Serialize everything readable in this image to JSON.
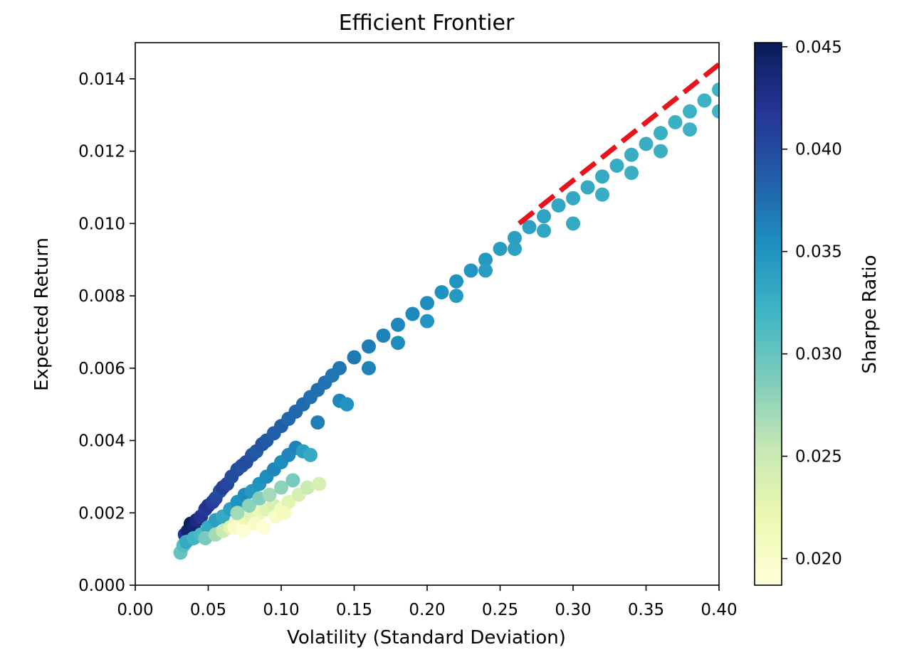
{
  "chart_data": {
    "type": "scatter",
    "title": "Efficient Frontier",
    "xlabel": "Volatility (Standard Deviation)",
    "ylabel": "Expected Return",
    "xlim": [
      0.0,
      0.4
    ],
    "ylim": [
      0.0,
      0.015
    ],
    "x_ticks": [
      "0.00",
      "0.05",
      "0.10",
      "0.15",
      "0.20",
      "0.25",
      "0.30",
      "0.35",
      "0.40"
    ],
    "y_ticks": [
      "0.000",
      "0.002",
      "0.004",
      "0.006",
      "0.008",
      "0.010",
      "0.012",
      "0.014"
    ],
    "grid": false,
    "colorbar": {
      "label": "Sharpe Ratio",
      "colormap": "YlGnBu",
      "range": [
        0.0187,
        0.0452
      ],
      "ticks": [
        "0.020",
        "0.025",
        "0.030",
        "0.035",
        "0.040",
        "0.045"
      ],
      "tick_values": [
        0.02,
        0.025,
        0.03,
        0.035,
        0.04,
        0.045
      ]
    },
    "series": [
      {
        "type": "scatter",
        "columns": [
          "volatility",
          "expected_return",
          "sharpe_ratio"
        ],
        "points": [
          [
            0.031,
            0.0009,
            0.03
          ],
          [
            0.033,
            0.0011,
            0.031
          ],
          [
            0.034,
            0.0014,
            0.042
          ],
          [
            0.036,
            0.0015,
            0.044
          ],
          [
            0.038,
            0.0017,
            0.045
          ],
          [
            0.04,
            0.0016,
            0.044
          ],
          [
            0.042,
            0.0018,
            0.043
          ],
          [
            0.045,
            0.0019,
            0.042
          ],
          [
            0.048,
            0.0021,
            0.0415
          ],
          [
            0.05,
            0.0022,
            0.042
          ],
          [
            0.053,
            0.0023,
            0.041
          ],
          [
            0.055,
            0.0024,
            0.0405
          ],
          [
            0.058,
            0.0026,
            0.04
          ],
          [
            0.06,
            0.0027,
            0.041
          ],
          [
            0.063,
            0.0028,
            0.0405
          ],
          [
            0.066,
            0.003,
            0.04
          ],
          [
            0.07,
            0.0032,
            0.04
          ],
          [
            0.073,
            0.0033,
            0.0395
          ],
          [
            0.076,
            0.0034,
            0.04
          ],
          [
            0.08,
            0.0036,
            0.0395
          ],
          [
            0.083,
            0.0037,
            0.039
          ],
          [
            0.087,
            0.0039,
            0.0395
          ],
          [
            0.09,
            0.004,
            0.039
          ],
          [
            0.095,
            0.0042,
            0.0385
          ],
          [
            0.1,
            0.0044,
            0.0385
          ],
          [
            0.105,
            0.0046,
            0.038
          ],
          [
            0.11,
            0.0048,
            0.038
          ],
          [
            0.115,
            0.005,
            0.0378
          ],
          [
            0.12,
            0.0052,
            0.0375
          ],
          [
            0.125,
            0.0054,
            0.0375
          ],
          [
            0.13,
            0.0056,
            0.0372
          ],
          [
            0.135,
            0.0058,
            0.037
          ],
          [
            0.14,
            0.006,
            0.037
          ],
          [
            0.15,
            0.0063,
            0.0368
          ],
          [
            0.16,
            0.0066,
            0.0365
          ],
          [
            0.17,
            0.0069,
            0.0362
          ],
          [
            0.18,
            0.0072,
            0.036
          ],
          [
            0.19,
            0.0075,
            0.0358
          ],
          [
            0.2,
            0.0078,
            0.0355
          ],
          [
            0.21,
            0.0081,
            0.0352
          ],
          [
            0.22,
            0.0084,
            0.035
          ],
          [
            0.23,
            0.0087,
            0.0348
          ],
          [
            0.24,
            0.009,
            0.0345
          ],
          [
            0.25,
            0.0093,
            0.0343
          ],
          [
            0.26,
            0.0096,
            0.034
          ],
          [
            0.27,
            0.0099,
            0.0338
          ],
          [
            0.28,
            0.0102,
            0.0336
          ],
          [
            0.29,
            0.0105,
            0.0334
          ],
          [
            0.3,
            0.0107,
            0.0332
          ],
          [
            0.31,
            0.011,
            0.0331
          ],
          [
            0.32,
            0.0113,
            0.033
          ],
          [
            0.33,
            0.0116,
            0.0329
          ],
          [
            0.34,
            0.0119,
            0.0328
          ],
          [
            0.35,
            0.0122,
            0.0327
          ],
          [
            0.36,
            0.0125,
            0.0326
          ],
          [
            0.37,
            0.0128,
            0.0325
          ],
          [
            0.38,
            0.0131,
            0.0324
          ],
          [
            0.39,
            0.0134,
            0.0323
          ],
          [
            0.4,
            0.0137,
            0.0322
          ],
          [
            0.035,
            0.0012,
            0.033
          ],
          [
            0.04,
            0.0013,
            0.032
          ],
          [
            0.045,
            0.0014,
            0.0315
          ],
          [
            0.05,
            0.0016,
            0.033
          ],
          [
            0.055,
            0.0018,
            0.034
          ],
          [
            0.06,
            0.0019,
            0.033
          ],
          [
            0.065,
            0.0021,
            0.034
          ],
          [
            0.07,
            0.0023,
            0.035
          ],
          [
            0.075,
            0.0025,
            0.0355
          ],
          [
            0.08,
            0.0026,
            0.0345
          ],
          [
            0.085,
            0.0028,
            0.035
          ],
          [
            0.09,
            0.003,
            0.0355
          ],
          [
            0.095,
            0.0032,
            0.036
          ],
          [
            0.1,
            0.0034,
            0.0355
          ],
          [
            0.105,
            0.0036,
            0.036
          ],
          [
            0.11,
            0.0038,
            0.0362
          ],
          [
            0.115,
            0.0037,
            0.034
          ],
          [
            0.12,
            0.0036,
            0.033
          ],
          [
            0.125,
            0.0045,
            0.0365
          ],
          [
            0.14,
            0.0051,
            0.036
          ],
          [
            0.145,
            0.005,
            0.035
          ],
          [
            0.16,
            0.006,
            0.0362
          ],
          [
            0.18,
            0.0067,
            0.0355
          ],
          [
            0.2,
            0.0073,
            0.035
          ],
          [
            0.22,
            0.008,
            0.0345
          ],
          [
            0.24,
            0.0087,
            0.0342
          ],
          [
            0.26,
            0.0093,
            0.0338
          ],
          [
            0.28,
            0.0098,
            0.0334
          ],
          [
            0.3,
            0.01,
            0.033
          ],
          [
            0.32,
            0.0108,
            0.0328
          ],
          [
            0.34,
            0.0114,
            0.0326
          ],
          [
            0.36,
            0.012,
            0.0325
          ],
          [
            0.38,
            0.0126,
            0.0323
          ],
          [
            0.4,
            0.0131,
            0.0321
          ],
          [
            0.048,
            0.0013,
            0.029
          ],
          [
            0.055,
            0.0014,
            0.027
          ],
          [
            0.06,
            0.0015,
            0.025
          ],
          [
            0.065,
            0.0016,
            0.023
          ],
          [
            0.07,
            0.0017,
            0.024
          ],
          [
            0.075,
            0.0018,
            0.022
          ],
          [
            0.08,
            0.0019,
            0.023
          ],
          [
            0.085,
            0.002,
            0.022
          ],
          [
            0.09,
            0.0021,
            0.023
          ],
          [
            0.095,
            0.0022,
            0.024
          ],
          [
            0.1,
            0.0021,
            0.021
          ],
          [
            0.105,
            0.0023,
            0.023
          ],
          [
            0.07,
            0.002,
            0.027
          ],
          [
            0.078,
            0.0022,
            0.028
          ],
          [
            0.085,
            0.0024,
            0.0285
          ],
          [
            0.092,
            0.0025,
            0.027
          ],
          [
            0.1,
            0.0027,
            0.028
          ],
          [
            0.108,
            0.0029,
            0.029
          ],
          [
            0.112,
            0.0025,
            0.024
          ],
          [
            0.118,
            0.0027,
            0.025
          ],
          [
            0.126,
            0.0028,
            0.024
          ],
          [
            0.068,
            0.0016,
            0.02
          ],
          [
            0.074,
            0.0015,
            0.019
          ],
          [
            0.082,
            0.0017,
            0.02
          ],
          [
            0.088,
            0.0016,
            0.019
          ],
          [
            0.096,
            0.0019,
            0.02
          ],
          [
            0.102,
            0.002,
            0.021
          ]
        ]
      },
      {
        "type": "line",
        "style": "dashed",
        "color": "#e8141c",
        "points": [
          [
            0.263,
            0.01
          ],
          [
            0.4,
            0.0144
          ]
        ]
      }
    ]
  }
}
